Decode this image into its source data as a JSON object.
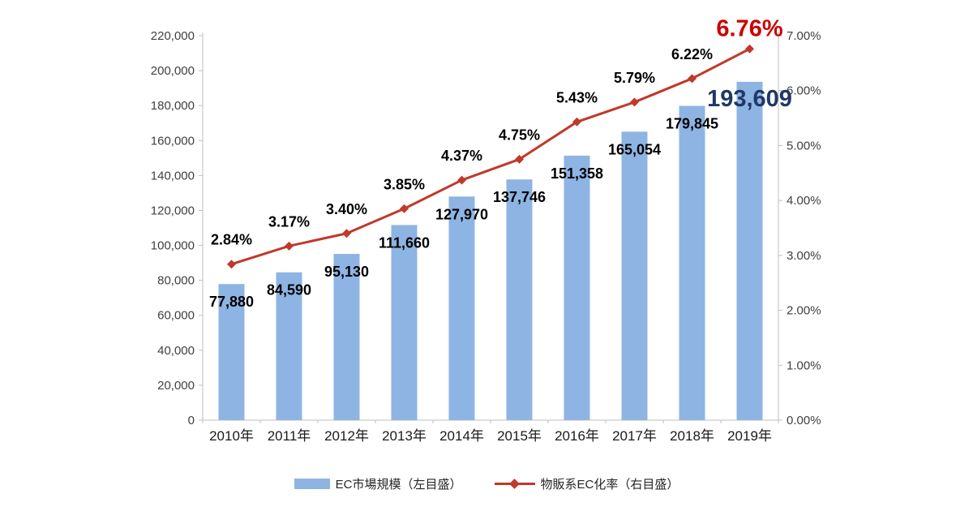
{
  "chart_data": {
    "type": "bar",
    "subtype": "bar+line combo, dual axis",
    "categories": [
      "2010年",
      "2011年",
      "2012年",
      "2013年",
      "2014年",
      "2015年",
      "2016年",
      "2017年",
      "2018年",
      "2019年"
    ],
    "series": [
      {
        "name": "EC市場規模（左目盛）",
        "type": "bar",
        "axis": "left",
        "color": "#8EB4E3",
        "values": [
          77880,
          84590,
          95130,
          111660,
          127970,
          137746,
          151358,
          165054,
          179845,
          193609
        ],
        "labels": [
          "77,880",
          "84,590",
          "95,130",
          "111,660",
          "127,970",
          "137,746",
          "151,358",
          "165,054",
          "179,845",
          "193,609"
        ]
      },
      {
        "name": "物販系EC化率（右目盛）",
        "type": "line",
        "axis": "right",
        "color": "#C0392B",
        "marker": "diamond",
        "values": [
          2.84,
          3.17,
          3.4,
          3.85,
          4.37,
          4.75,
          5.43,
          5.79,
          6.22,
          6.76
        ],
        "labels": [
          "2.84%",
          "3.17%",
          "3.40%",
          "3.85%",
          "4.37%",
          "4.75%",
          "5.43%",
          "5.79%",
          "6.22%",
          "6.76%"
        ]
      }
    ],
    "left_axis": {
      "min": 0,
      "max": 220000,
      "step": 20000,
      "tick_labels": [
        "0",
        "20,000",
        "40,000",
        "60,000",
        "80,000",
        "100,000",
        "120,000",
        "140,000",
        "160,000",
        "180,000",
        "200,000",
        "220,000"
      ]
    },
    "right_axis": {
      "min": 0,
      "max": 7,
      "step": 1,
      "tick_labels": [
        "0.00%",
        "1.00%",
        "2.00%",
        "3.00%",
        "4.00%",
        "5.00%",
        "6.00%",
        "7.00%"
      ]
    },
    "highlight": {
      "last_index": 9,
      "bar_label_color": "#1F3864",
      "line_label_color": "#CC0000",
      "normal_label_color": "#000000"
    },
    "grid": "off",
    "legend_position": "bottom",
    "title": ""
  },
  "legend": {
    "items": [
      {
        "label": "EC市場規模（左目盛）",
        "swatch": "bar"
      },
      {
        "label": "物販系EC化率（右目盛）",
        "swatch": "line-diamond"
      }
    ]
  }
}
